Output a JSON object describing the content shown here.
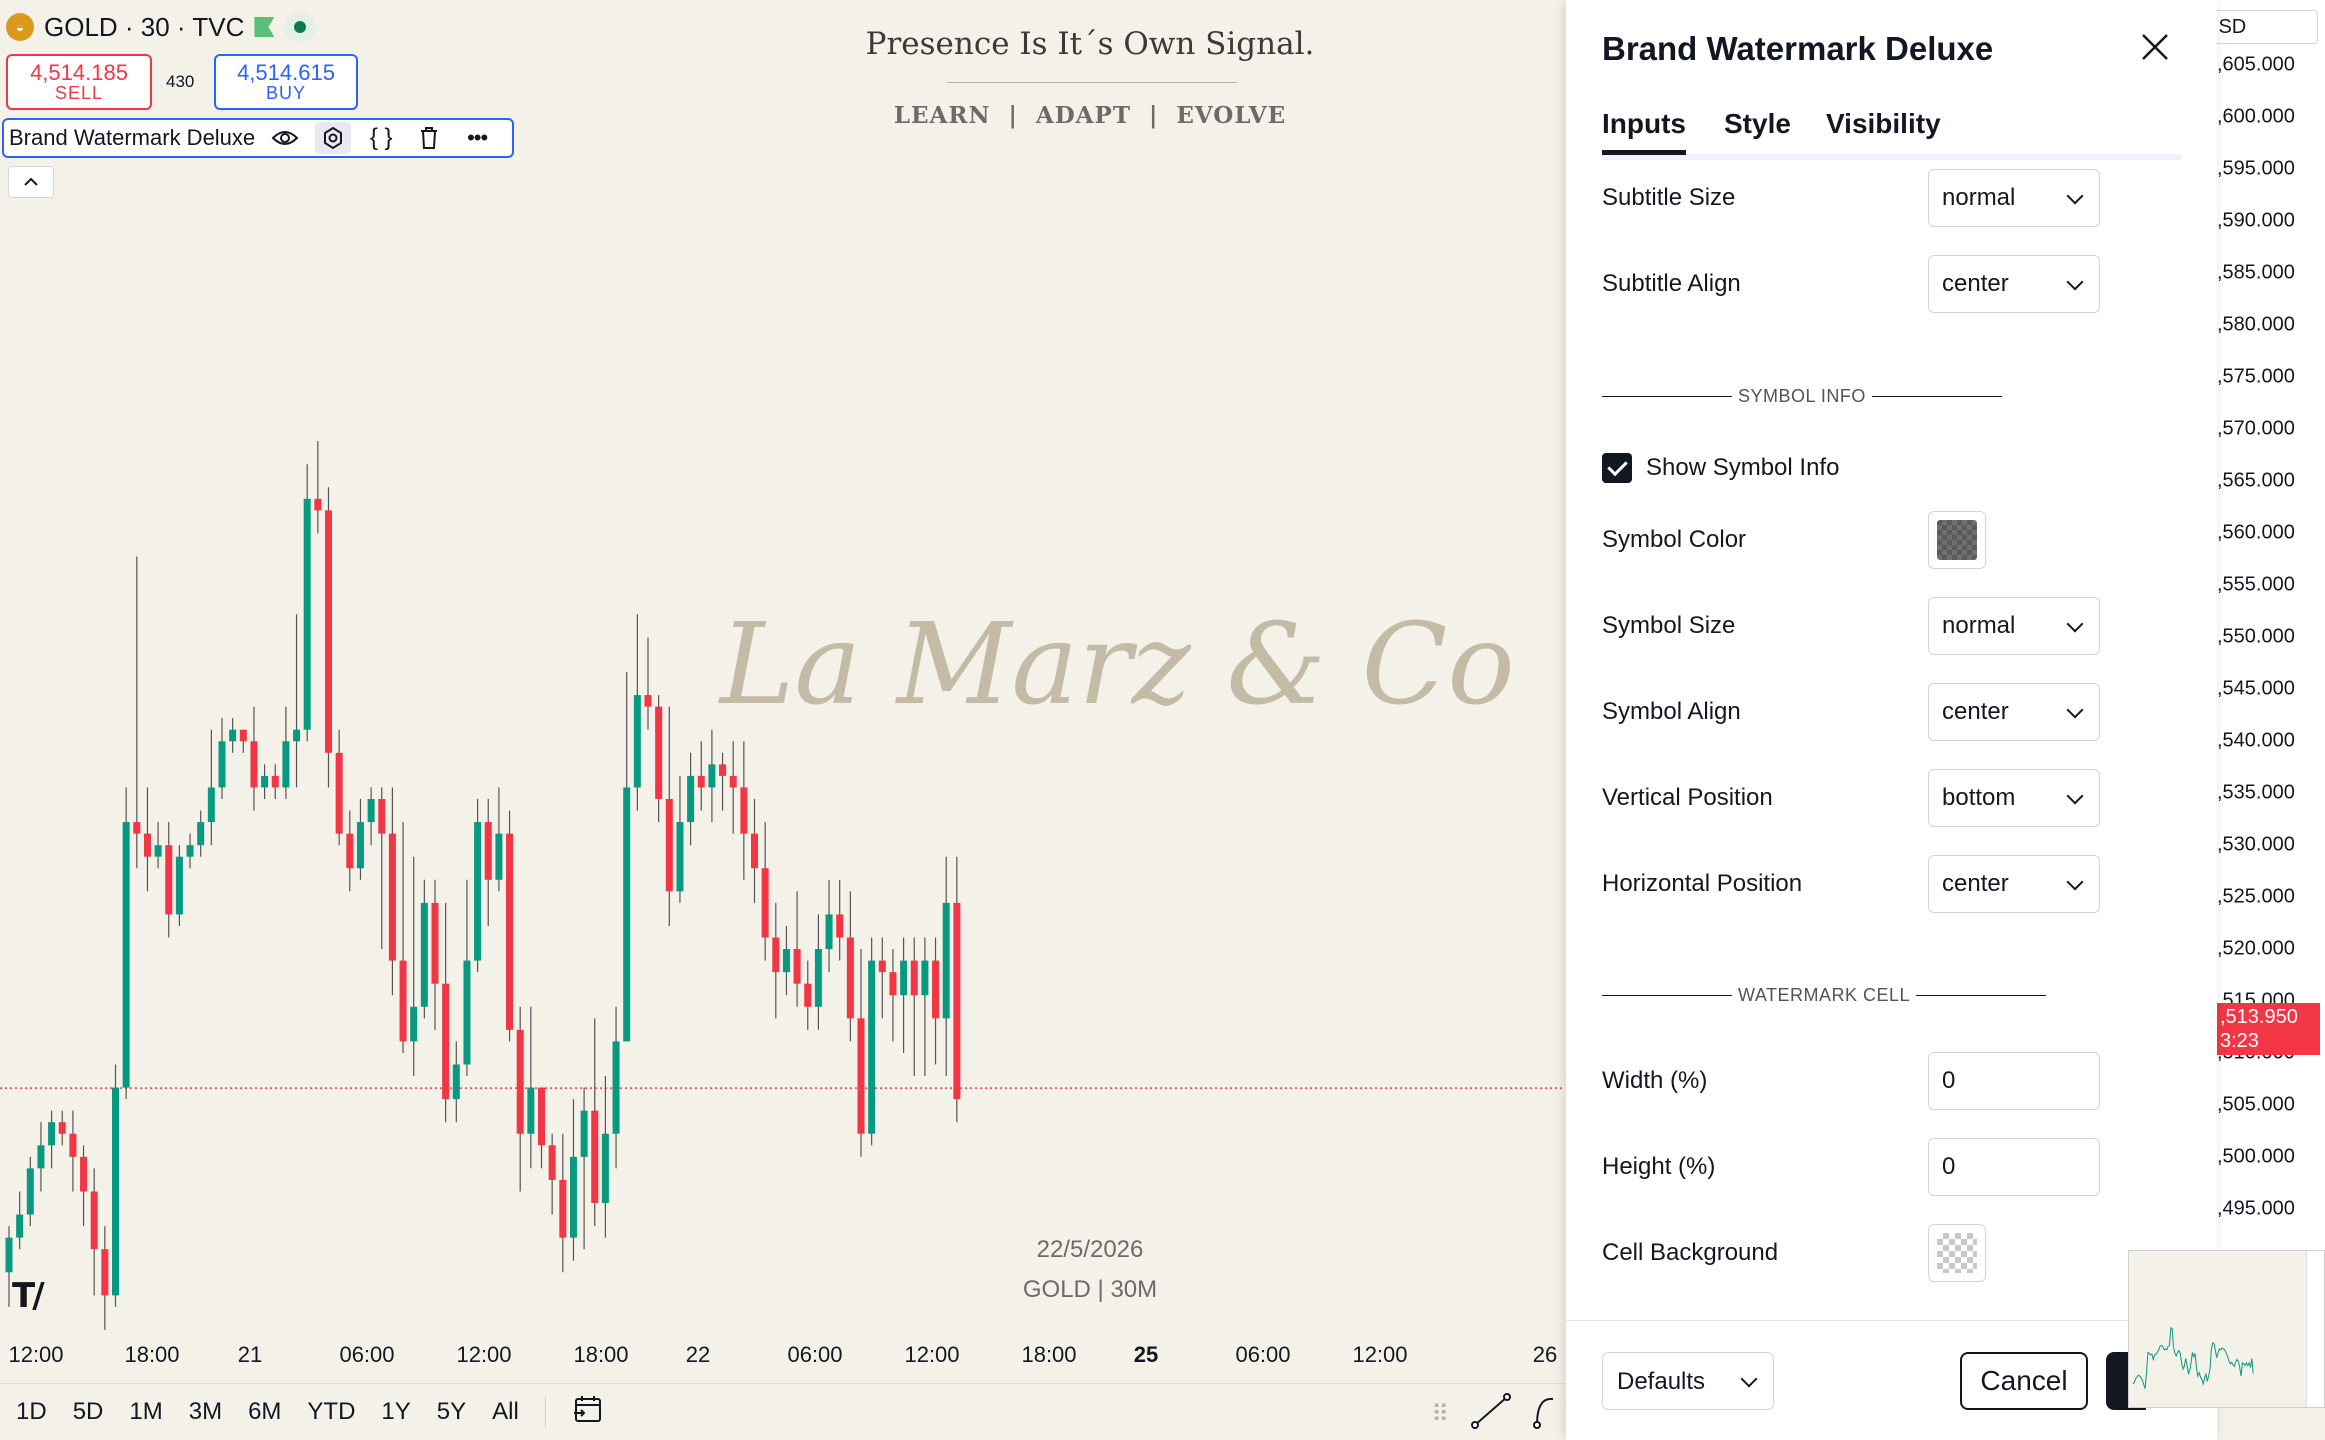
{
  "symbol_bar": {
    "symbol": "GOLD · 30 · TVC",
    "logo_icon": "gold-coin-icon",
    "flag_icon": "flag-icon",
    "live_icon": "market-open-dot-icon"
  },
  "trade": {
    "sell_price": "4,514.185",
    "sell_label": "SELL",
    "spread": "430",
    "buy_price": "4,514.615",
    "buy_label": "BUY"
  },
  "indicator": {
    "name": "Brand Watermark Deluxe",
    "icons": [
      "eye-icon",
      "settings-icon",
      "source-code-icon",
      "trash-icon",
      "more-icon"
    ]
  },
  "watermark": {
    "title": "Presence Is It´s Own Signal.",
    "subtitle": "LEARN  |  ADAPT  |  EVOLVE",
    "main_text": "La Marz & Co",
    "date": "22/5/2026",
    "symbol_info": "GOLD | 30M"
  },
  "time_axis": [
    "12:00",
    "18:00",
    "21",
    "06:00",
    "12:00",
    "18:00",
    "22",
    "06:00",
    "12:00",
    "18:00",
    "25",
    "06:00",
    "12:00",
    "26"
  ],
  "bottom_bar": {
    "ranges": [
      "1D",
      "5D",
      "1M",
      "3M",
      "6M",
      "YTD",
      "1Y",
      "5Y",
      "All"
    ]
  },
  "price_axis": {
    "currency": "USD",
    "labels": [
      ",605.000",
      ",600.000",
      ",595.000",
      ",590.000",
      ",585.000",
      ",580.000",
      ",575.000",
      ",570.000",
      ",565.000",
      ",560.000",
      ",555.000",
      ",550.000",
      ",545.000",
      ",540.000",
      ",535.000",
      ",530.000",
      ",525.000",
      ",520.000",
      ",515.000",
      ",510.000",
      ",505.000",
      ",500.000",
      ",495.000"
    ],
    "current_price": ",513.950",
    "countdown": "3:23"
  },
  "dialog": {
    "title": "Brand Watermark Deluxe",
    "tabs": [
      "Inputs",
      "Style",
      "Visibility"
    ],
    "subtitle_size_label": "Subtitle Size",
    "subtitle_size_value": "normal",
    "subtitle_align_label": "Subtitle Align",
    "subtitle_align_value": "center",
    "section_symbol_info": "SYMBOL INFO",
    "show_symbol_info_label": "Show Symbol Info",
    "show_symbol_info_checked": true,
    "symbol_color_label": "Symbol Color",
    "symbol_size_label": "Symbol Size",
    "symbol_size_value": "normal",
    "symbol_align_label": "Symbol Align",
    "symbol_align_value": "center",
    "vertical_position_label": "Vertical Position",
    "vertical_position_value": "bottom",
    "horizontal_position_label": "Horizontal Position",
    "horizontal_position_value": "center",
    "section_watermark_cell": "WATERMARK CELL",
    "width_label": "Width (%)",
    "width_value": "0",
    "height_label": "Height (%)",
    "height_value": "0",
    "cell_background_label": "Cell Background",
    "defaults_label": "Defaults",
    "cancel_label": "Cancel"
  },
  "colors": {
    "up": "#089981",
    "down": "#f23645",
    "background": "#f4f1e8",
    "accent": "#2962ff",
    "watermark": "#c4bba7"
  },
  "chart_data": {
    "type": "candlestick",
    "price_range": [
      4493,
      4607
    ],
    "reference_line": 4513.95,
    "candles": [
      [
        4498,
        4501,
        4495,
        4502
      ],
      [
        4501,
        4503,
        4500,
        4505
      ],
      [
        4503,
        4507,
        4502,
        4508
      ],
      [
        4507,
        4509,
        4505,
        4511
      ],
      [
        4509,
        4511,
        4507,
        4512
      ],
      [
        4511,
        4510,
        4509,
        4512
      ],
      [
        4510,
        4508,
        4505,
        4512
      ],
      [
        4508,
        4505,
        4502,
        4509
      ],
      [
        4505,
        4500,
        4496,
        4507
      ],
      [
        4500,
        4496,
        4493,
        4502
      ],
      [
        4496,
        4514,
        4495,
        4516
      ],
      [
        4514,
        4537,
        4513,
        4540
      ],
      [
        4537,
        4536,
        4533,
        4560
      ],
      [
        4536,
        4534,
        4531,
        4540
      ],
      [
        4534,
        4535,
        4533,
        4537
      ],
      [
        4535,
        4529,
        4527,
        4537
      ],
      [
        4529,
        4534,
        4528,
        4535
      ],
      [
        4534,
        4535,
        4533,
        4536
      ],
      [
        4535,
        4537,
        4534,
        4538
      ],
      [
        4537,
        4540,
        4535,
        4545
      ],
      [
        4540,
        4544,
        4539,
        4546
      ],
      [
        4544,
        4545,
        4543,
        4546
      ],
      [
        4545,
        4544,
        4543,
        4545
      ],
      [
        4544,
        4540,
        4538,
        4547
      ],
      [
        4540,
        4541,
        4539,
        4542
      ],
      [
        4541,
        4540,
        4539,
        4542
      ],
      [
        4540,
        4544,
        4539,
        4547
      ],
      [
        4544,
        4545,
        4540,
        4555
      ],
      [
        4545,
        4565,
        4544,
        4568
      ],
      [
        4565,
        4564,
        4562,
        4570
      ],
      [
        4564,
        4543,
        4540,
        4566
      ],
      [
        4543,
        4536,
        4535,
        4545
      ],
      [
        4536,
        4533,
        4531,
        4538
      ],
      [
        4533,
        4537,
        4532,
        4539
      ],
      [
        4537,
        4539,
        4535,
        4540
      ],
      [
        4539,
        4536,
        4526,
        4540
      ],
      [
        4536,
        4525,
        4522,
        4540
      ],
      [
        4525,
        4518,
        4517,
        4537
      ],
      [
        4518,
        4521,
        4515,
        4534
      ],
      [
        4521,
        4530,
        4520,
        4532
      ],
      [
        4530,
        4523,
        4519,
        4532
      ],
      [
        4523,
        4513,
        4511,
        4530
      ],
      [
        4513,
        4516,
        4511,
        4518
      ],
      [
        4516,
        4525,
        4515,
        4532
      ],
      [
        4525,
        4537,
        4524,
        4539
      ],
      [
        4537,
        4532,
        4528,
        4539
      ],
      [
        4532,
        4536,
        4531,
        4540
      ],
      [
        4536,
        4519,
        4518,
        4538
      ],
      [
        4519,
        4510,
        4505,
        4521
      ],
      [
        4510,
        4514,
        4507,
        4521
      ],
      [
        4514,
        4509,
        4507,
        4514
      ],
      [
        4509,
        4506,
        4503,
        4510
      ],
      [
        4506,
        4501,
        4498,
        4510
      ],
      [
        4501,
        4508,
        4499,
        4513
      ],
      [
        4508,
        4512,
        4500,
        4514
      ],
      [
        4512,
        4504,
        4502,
        4520
      ],
      [
        4504,
        4510,
        4501,
        4515
      ],
      [
        4510,
        4518,
        4507,
        4521
      ],
      [
        4518,
        4540,
        4518,
        4550
      ],
      [
        4540,
        4548,
        4538,
        4555
      ],
      [
        4548,
        4547,
        4545,
        4553
      ],
      [
        4547,
        4539,
        4537,
        4548
      ],
      [
        4539,
        4531,
        4528,
        4547
      ],
      [
        4531,
        4537,
        4530,
        4541
      ],
      [
        4537,
        4541,
        4535,
        4543
      ],
      [
        4541,
        4540,
        4538,
        4544
      ],
      [
        4540,
        4542,
        4537,
        4545
      ],
      [
        4542,
        4541,
        4538,
        4543
      ],
      [
        4541,
        4540,
        4536,
        4544
      ],
      [
        4540,
        4536,
        4532,
        4544
      ],
      [
        4536,
        4533,
        4530,
        4539
      ],
      [
        4533,
        4527,
        4525,
        4537
      ],
      [
        4527,
        4524,
        4520,
        4530
      ],
      [
        4524,
        4526,
        4522,
        4528
      ],
      [
        4526,
        4523,
        4521,
        4531
      ],
      [
        4523,
        4521,
        4519,
        4525
      ],
      [
        4521,
        4526,
        4519,
        4529
      ],
      [
        4526,
        4529,
        4524,
        4532
      ],
      [
        4529,
        4527,
        4525,
        4532
      ],
      [
        4527,
        4520,
        4518,
        4531
      ],
      [
        4520,
        4510,
        4508,
        4526
      ],
      [
        4510,
        4525,
        4509,
        4527
      ],
      [
        4525,
        4524,
        4520,
        4527
      ],
      [
        4524,
        4522,
        4518,
        4526
      ],
      [
        4522,
        4525,
        4517,
        4527
      ],
      [
        4525,
        4522,
        4515,
        4527
      ],
      [
        4522,
        4525,
        4515,
        4527
      ],
      [
        4525,
        4520,
        4516,
        4527
      ],
      [
        4520,
        4530,
        4515,
        4534
      ],
      [
        4530,
        4513,
        4511,
        4534
      ]
    ]
  }
}
